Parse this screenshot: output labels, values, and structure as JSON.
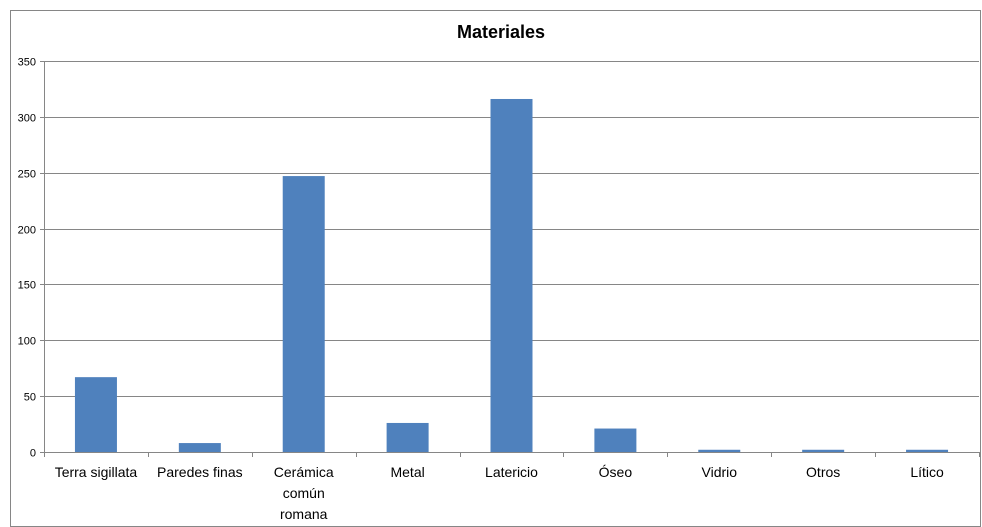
{
  "chart_data": {
    "type": "bar",
    "title": "Materiales",
    "xlabel": "",
    "ylabel": "",
    "categories": [
      "Terra sigillata",
      "Paredes finas",
      "Cerámica común romana",
      "Metal",
      "Latericio",
      "Óseo",
      "Vidrio",
      "Otros",
      "Lítico"
    ],
    "category_lines": [
      [
        "Terra sigillata"
      ],
      [
        "Paredes finas"
      ],
      [
        "Cerámica",
        "común",
        "romana"
      ],
      [
        "Metal"
      ],
      [
        "Latericio"
      ],
      [
        "Óseo"
      ],
      [
        "Vidrio"
      ],
      [
        "Otros"
      ],
      [
        "Lítico"
      ]
    ],
    "values": [
      67,
      8,
      247,
      26,
      316,
      21,
      2,
      2,
      2
    ],
    "ylim": [
      0,
      350
    ],
    "yticks": [
      0,
      50,
      100,
      150,
      200,
      250,
      300,
      350
    ],
    "grid": true,
    "legend": "none",
    "colors": {
      "bar": "#4F81BD",
      "grid": "#868686",
      "axis": "#868686",
      "border": "#868686"
    }
  }
}
